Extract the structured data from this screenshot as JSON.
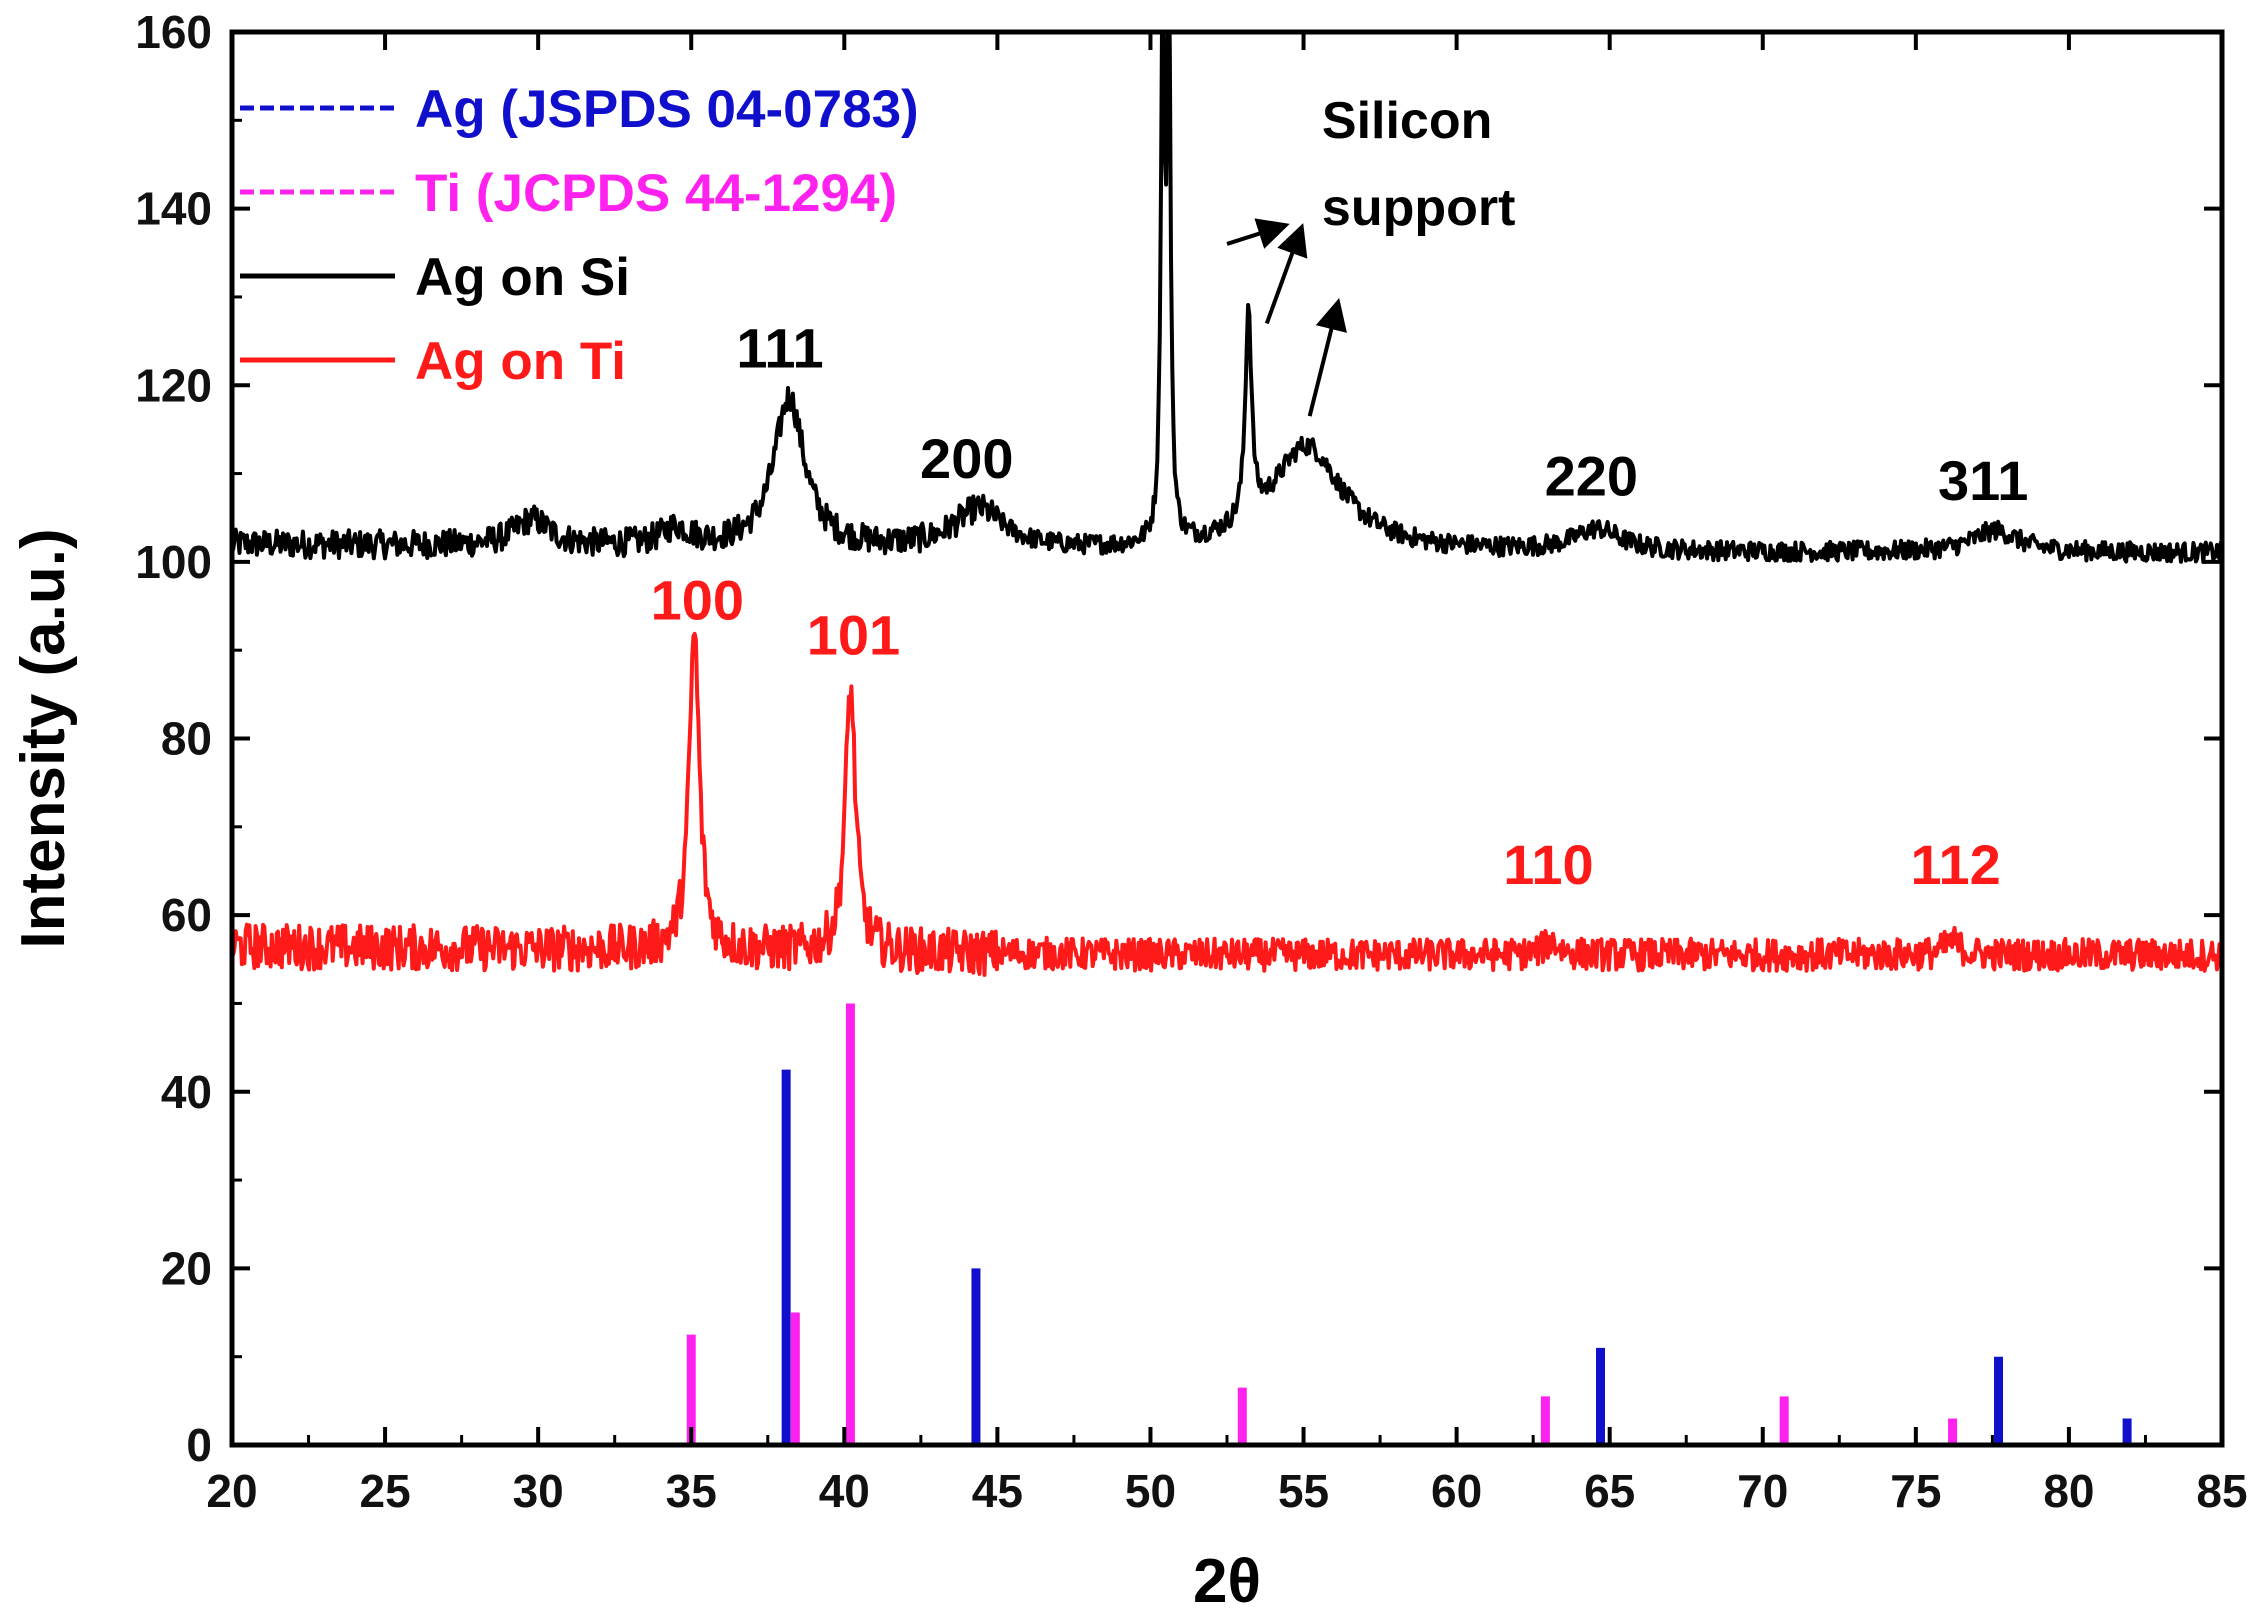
{
  "chart_data": {
    "type": "line",
    "xlabel": "2θ",
    "ylabel": "Intensity (a.u.)",
    "xlim": [
      20,
      85
    ],
    "ylim": [
      0,
      160
    ],
    "xticks": [
      20,
      25,
      30,
      35,
      40,
      45,
      50,
      55,
      60,
      65,
      70,
      75,
      80,
      85
    ],
    "yticks": [
      0,
      20,
      40,
      60,
      80,
      100,
      120,
      140,
      160
    ],
    "legend": [
      {
        "label": "Ag (JSPDS 04-0783)",
        "style": "dashed",
        "color": "#1010cc"
      },
      {
        "label": "Ti (JCPDS 44-1294)",
        "style": "dashed",
        "color": "#ff22ee"
      },
      {
        "label": "Ag on Si",
        "style": "solid",
        "color": "#000000"
      },
      {
        "label": "Ag on Ti",
        "style": "solid",
        "color": "#ff1a1a"
      }
    ],
    "series": [
      {
        "name": "Ag on Si",
        "color": "#000000",
        "baseline": 101,
        "noise": 1.6,
        "start_level": 102,
        "peaks": [
          {
            "x": 29.8,
            "height": 3,
            "width": 0.7
          },
          {
            "x": 34.5,
            "height": 2,
            "width": 0.6
          },
          {
            "x": 38.2,
            "height": 17,
            "width": 0.6
          },
          {
            "x": 44.4,
            "height": 4.5,
            "width": 1.0
          },
          {
            "x": 50.4,
            "height": 60,
            "width": 0.07
          },
          {
            "x": 50.6,
            "height": 60,
            "width": 0.07
          },
          {
            "x": 53.2,
            "height": 24,
            "width": 0.12
          },
          {
            "x": 55.1,
            "height": 12,
            "width": 1.4
          },
          {
            "x": 64.6,
            "height": 2.5,
            "width": 0.9
          },
          {
            "x": 77.6,
            "height": 2.5,
            "width": 0.9
          }
        ]
      },
      {
        "name": "Ag on Ti",
        "color": "#ff1a1a",
        "baseline": 55.5,
        "noise": 2.6,
        "start_level": 56.5,
        "peaks": [
          {
            "x": 35.1,
            "height": 36,
            "width": 0.2
          },
          {
            "x": 40.2,
            "height": 30,
            "width": 0.2
          },
          {
            "x": 63.1,
            "height": 1.5,
            "width": 0.3
          },
          {
            "x": 76.2,
            "height": 1.5,
            "width": 0.3
          }
        ]
      }
    ],
    "reference_lines": [
      {
        "name": "Ag (JSPDS 04-0783)",
        "color": "#1010cc",
        "positions": [
          38.1,
          44.3,
          64.7,
          77.7,
          81.9
        ],
        "intensities": [
          42.5,
          20,
          11,
          10,
          3
        ]
      },
      {
        "name": "Ti (JCPDS 44-1294)",
        "color": "#ff22ee",
        "positions": [
          35.0,
          38.4,
          40.2,
          53.0,
          62.9,
          70.7,
          76.2
        ],
        "intensities": [
          12.5,
          15,
          50,
          6.5,
          5.5,
          5.5,
          3
        ]
      }
    ],
    "annotations": [
      {
        "text": "111",
        "x": 37.9,
        "y": 122,
        "color": "#000000"
      },
      {
        "text": "200",
        "x": 44.0,
        "y": 109.5,
        "color": "#000000"
      },
      {
        "text": "220",
        "x": 64.4,
        "y": 107.5,
        "color": "#000000"
      },
      {
        "text": "311",
        "x": 77.2,
        "y": 107,
        "color": "#000000"
      },
      {
        "text": "100",
        "x": 35.2,
        "y": 93.5,
        "color": "#ff1a1a"
      },
      {
        "text": "101",
        "x": 40.3,
        "y": 89.5,
        "color": "#ff1a1a"
      },
      {
        "text": "110",
        "x": 63.0,
        "y": 63.5,
        "color": "#ff1a1a"
      },
      {
        "text": "112",
        "x": 76.3,
        "y": 63.5,
        "color": "#ff1a1a"
      }
    ],
    "note": {
      "lines": [
        "Silicon",
        "support"
      ],
      "x": 55.6,
      "y": 148,
      "arrows": [
        {
          "from": [
            52.5,
            136
          ],
          "to": [
            54.3,
            138
          ]
        },
        {
          "from": [
            53.8,
            127
          ],
          "to": [
            54.9,
            137.5
          ]
        },
        {
          "from": [
            55.2,
            116.5
          ],
          "to": [
            56.1,
            129
          ]
        }
      ]
    }
  }
}
